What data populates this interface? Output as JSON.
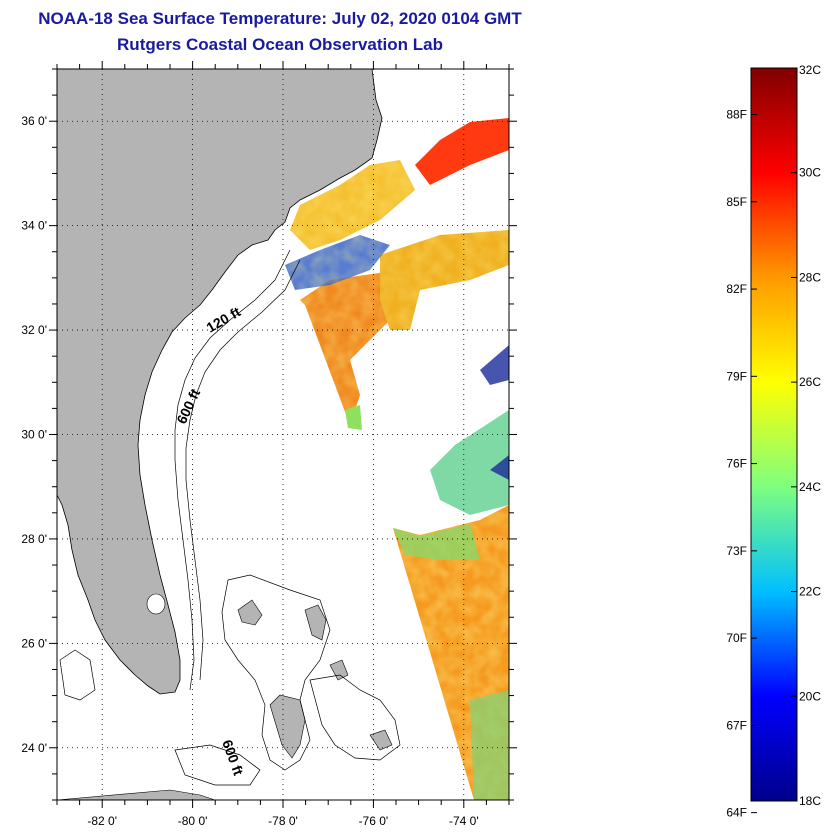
{
  "header": {
    "title": "NOAA-18 Sea Surface Temperature:  July 02, 2020 0104 GMT",
    "subtitle": "Rutgers Coastal Ocean Observation Lab"
  },
  "map": {
    "lon_range": [
      -83,
      -73
    ],
    "lat_range": [
      23,
      37
    ],
    "lat_ticks": [
      {
        "value": 36,
        "label": "36 0'"
      },
      {
        "value": 34,
        "label": "34 0'"
      },
      {
        "value": 32,
        "label": "32 0'"
      },
      {
        "value": 30,
        "label": "30 0'"
      },
      {
        "value": 28,
        "label": "28 0'"
      },
      {
        "value": 26,
        "label": "26 0'"
      },
      {
        "value": 24,
        "label": "24 0'"
      }
    ],
    "lon_ticks": [
      {
        "value": -82,
        "label": "-82 0'"
      },
      {
        "value": -80,
        "label": "-80 0'"
      },
      {
        "value": -78,
        "label": "-78 0'"
      },
      {
        "value": -76,
        "label": "-76 0'"
      },
      {
        "value": -74,
        "label": "-74 0'"
      }
    ],
    "contour_labels": {
      "c120": "120 ft",
      "c600a": "600 ft",
      "c600b": "600 ft"
    },
    "land_color": "#b4b4b4",
    "grid": "dotted"
  },
  "colorbar": {
    "range_c": [
      18,
      32
    ],
    "celsius_ticks": [
      {
        "value": 32,
        "label": "32C"
      },
      {
        "value": 30,
        "label": "30C"
      },
      {
        "value": 28,
        "label": "28C"
      },
      {
        "value": 26,
        "label": "26C"
      },
      {
        "value": 24,
        "label": "24C"
      },
      {
        "value": 22,
        "label": "22C"
      },
      {
        "value": 20,
        "label": "20C"
      },
      {
        "value": 18,
        "label": "18C"
      }
    ],
    "fahrenheit_ticks": [
      {
        "value": 88,
        "label": "88F"
      },
      {
        "value": 85,
        "label": "85F"
      },
      {
        "value": 82,
        "label": "82F"
      },
      {
        "value": 79,
        "label": "79F"
      },
      {
        "value": 76,
        "label": "76F"
      },
      {
        "value": 73,
        "label": "73F"
      },
      {
        "value": 70,
        "label": "70F"
      },
      {
        "value": 67,
        "label": "67F"
      },
      {
        "value": 64,
        "label": "64F"
      }
    ],
    "colormap": [
      "#00008b",
      "#0000ff",
      "#00bfff",
      "#7fff7f",
      "#ffff00",
      "#ff9900",
      "#ff0000",
      "#800000"
    ]
  }
}
